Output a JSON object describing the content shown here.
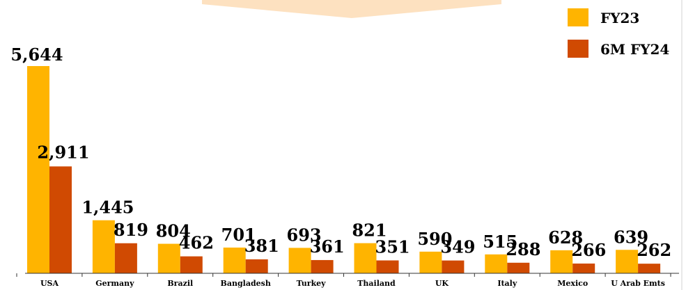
{
  "colors": {
    "fy23": "#FFB400",
    "fy24": "#D04A02",
    "banner": "#FDE1C0",
    "axis": "#333333",
    "border": "#E8E8E8"
  },
  "legend": {
    "items": [
      {
        "label": "FY23",
        "color": "#FFB400"
      },
      {
        "label": "6M FY24",
        "color": "#D04A02"
      }
    ],
    "placement": "top-right"
  },
  "chart_data": {
    "type": "bar",
    "categories": [
      "USA",
      "Germany",
      "Brazil",
      "Bangladesh",
      "Turkey",
      "Thailand",
      "UK",
      "Italy",
      "Mexico",
      "U Arab Emts"
    ],
    "series": [
      {
        "name": "FY23",
        "values": [
          5644,
          1445,
          804,
          701,
          693,
          821,
          590,
          515,
          628,
          639
        ]
      },
      {
        "name": "6M FY24",
        "values": [
          2911,
          819,
          462,
          381,
          361,
          351,
          349,
          288,
          266,
          262
        ]
      }
    ],
    "value_labels": {
      "FY23": [
        "5,644",
        "1,445",
        "804",
        "701",
        "693",
        "821",
        "590",
        "515",
        "628",
        "639"
      ],
      "6M FY24": [
        "2,911",
        "819",
        "462",
        "381",
        "361",
        "351",
        "349",
        "288",
        "266",
        "262"
      ]
    },
    "title": "",
    "xlabel": "",
    "ylabel": "",
    "ylim": [
      0,
      5644
    ],
    "grid": false,
    "legend_position": "top-right"
  }
}
